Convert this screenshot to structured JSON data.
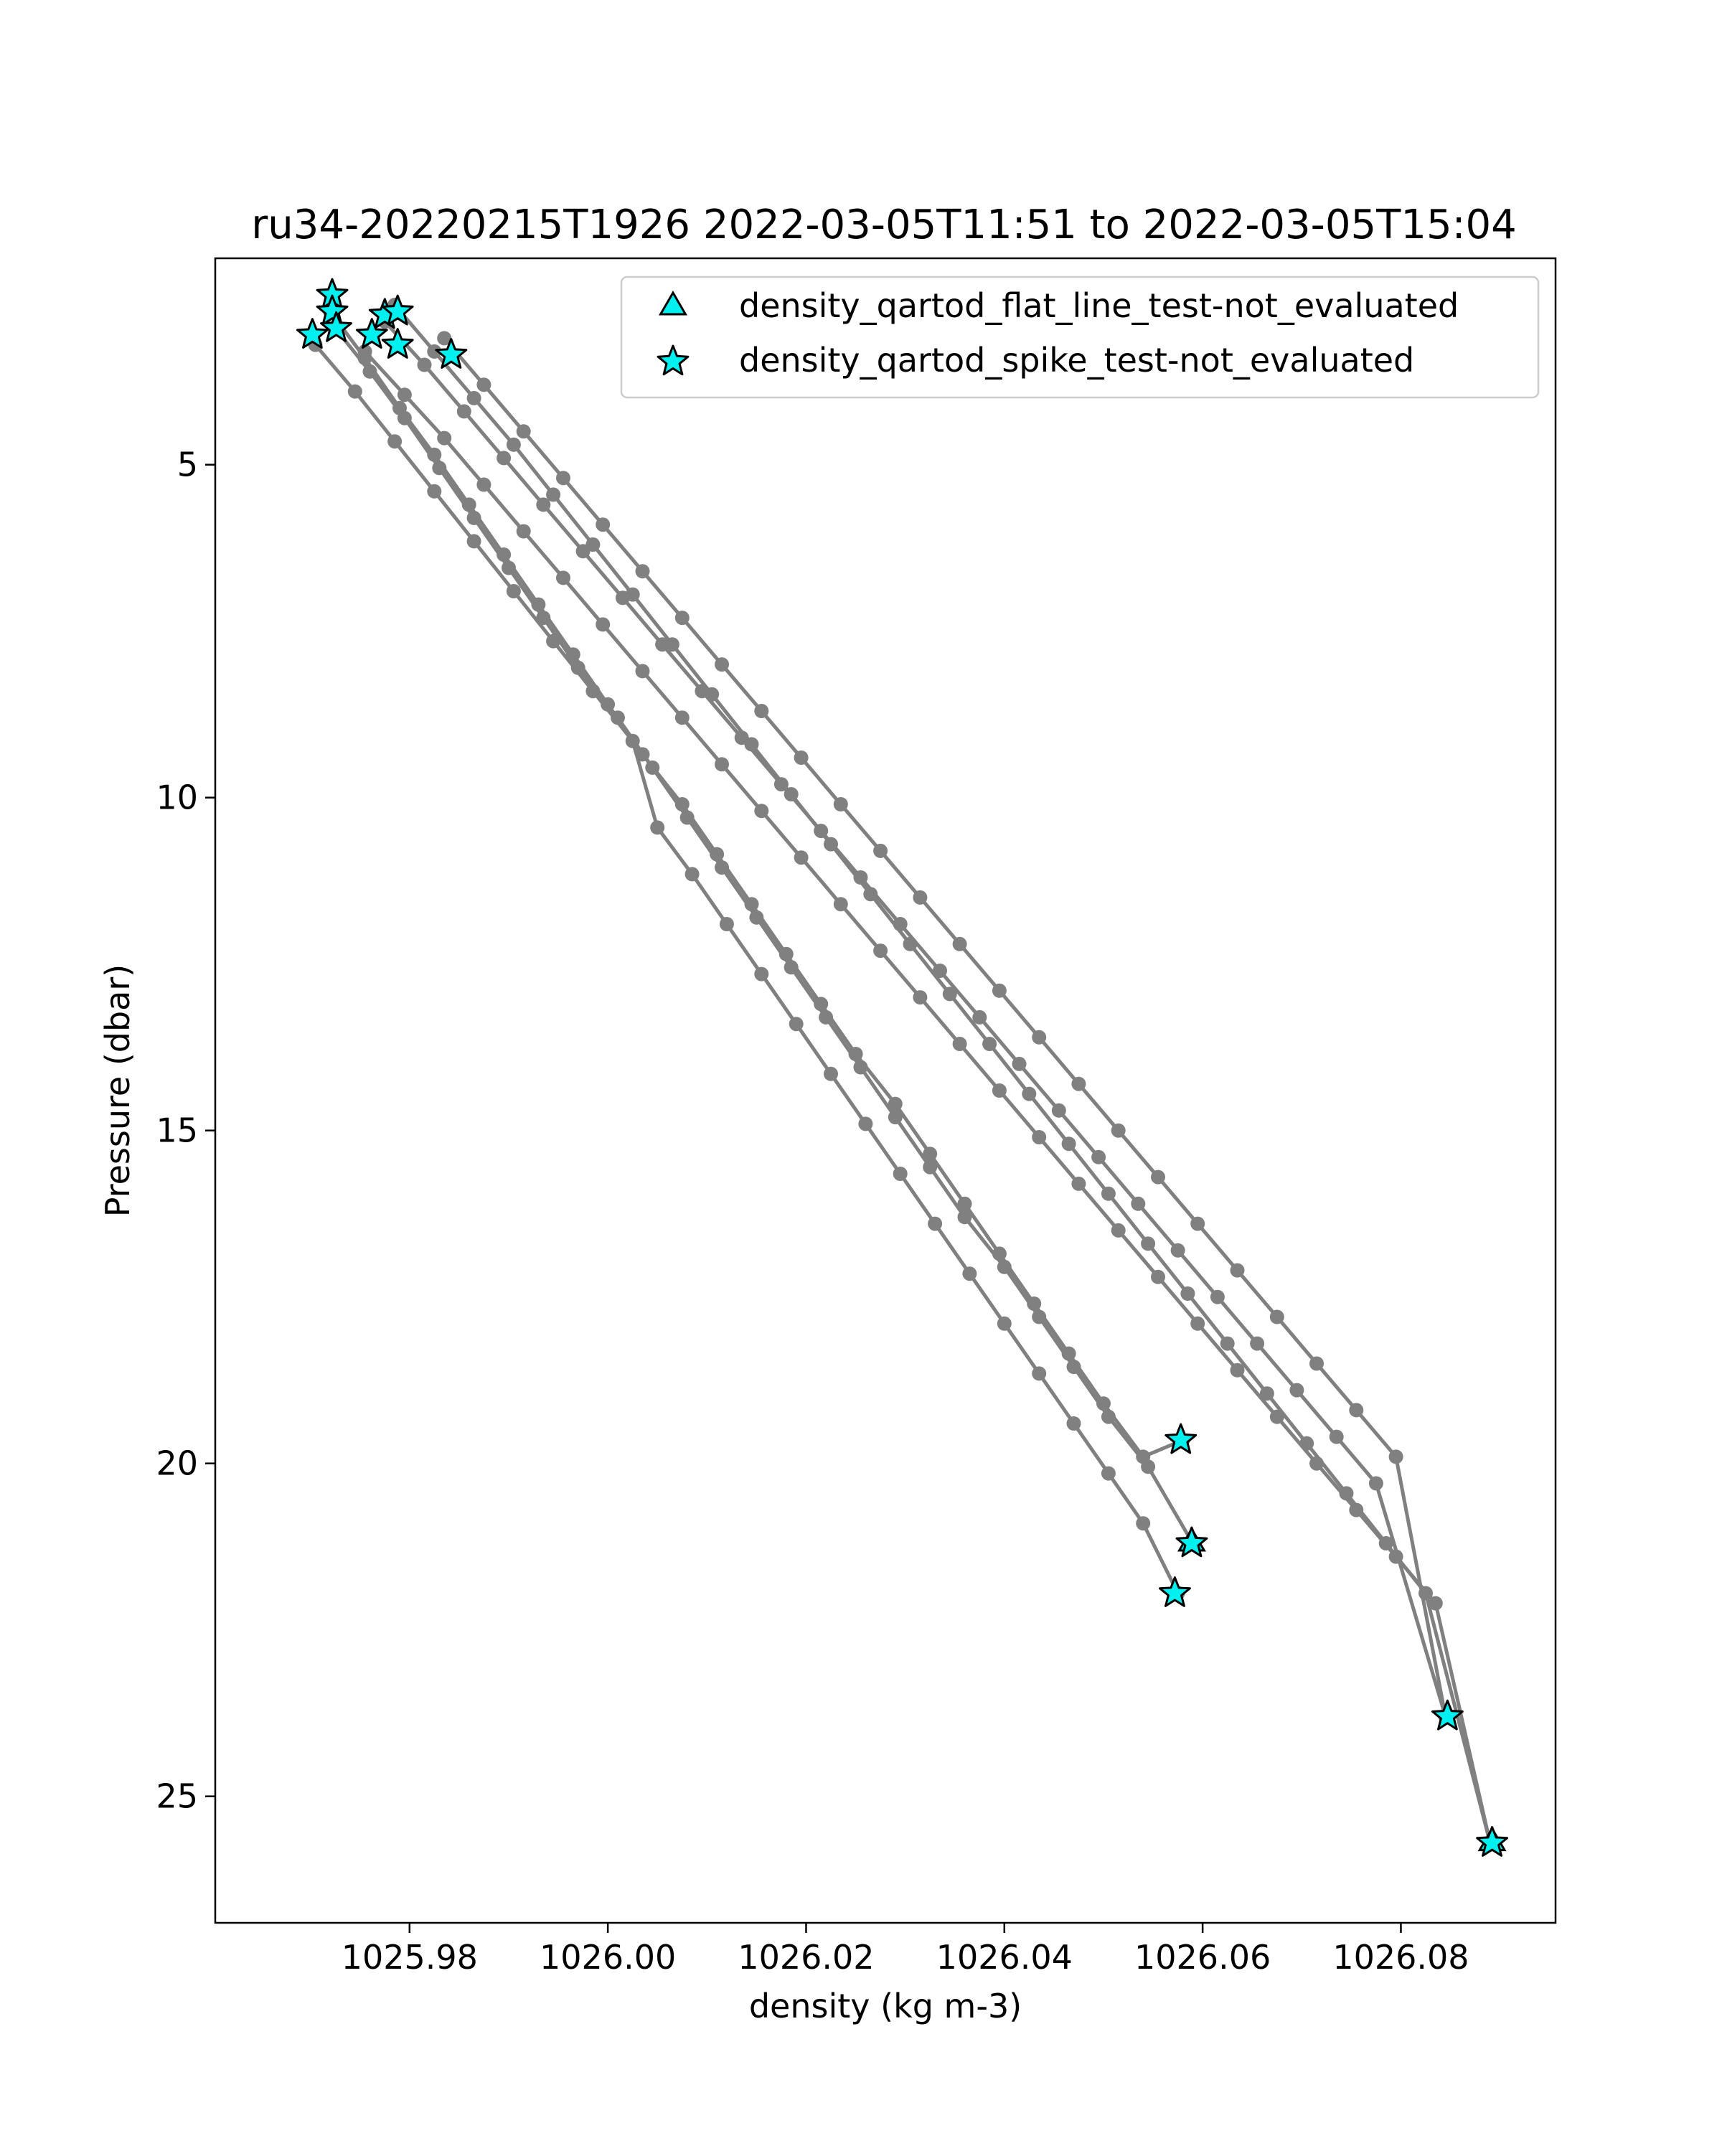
{
  "chart_data": {
    "type": "scatter",
    "title": "ru34-20220215T1926 2022-03-05T11:51 to 2022-03-05T15:04",
    "xlabel": "density (kg m-3)",
    "ylabel": "Pressure (dbar)",
    "xlim": [
      1025.9604,
      1026.0956
    ],
    "ylim": [
      26.9,
      1.9
    ],
    "y_inverted": true,
    "grid": false,
    "legend_position": "upper right",
    "xticks": [
      {
        "value": 1025.98,
        "label": "1025.98"
      },
      {
        "value": 1026.0,
        "label": "1026.00"
      },
      {
        "value": 1026.02,
        "label": "1026.02"
      },
      {
        "value": 1026.04,
        "label": "1026.04"
      },
      {
        "value": 1026.06,
        "label": "1026.06"
      },
      {
        "value": 1026.08,
        "label": "1026.08"
      }
    ],
    "yticks": [
      {
        "value": 5,
        "label": "5"
      },
      {
        "value": 10,
        "label": "10"
      },
      {
        "value": 15,
        "label": "15"
      },
      {
        "value": 20,
        "label": "20"
      },
      {
        "value": 25,
        "label": "25"
      }
    ],
    "profile_color": "#808080",
    "marker_color": "#00f0f0",
    "marker_edge_color": "#000000",
    "legend": [
      {
        "label": "density_qartod_flat_line_test-not_evaluated",
        "marker": "triangle"
      },
      {
        "label": "density_qartod_spike_test-not_evaluated",
        "marker": "star"
      }
    ],
    "profiles": [
      {
        "x": [
          1025.972,
          1025.9755,
          1025.979,
          1025.9825,
          1025.986,
          1025.9895,
          1025.993,
          1025.9965,
          1026.0,
          1026.0035,
          1026.0075,
          1026.011,
          1026.0145,
          1026.018,
          1026.0215,
          1026.025,
          1026.029,
          1026.0325,
          1026.036,
          1026.0395,
          1026.043,
          1026.0465,
          1026.05,
          1026.054,
          1026.058
        ],
        "y": [
          2.7,
          3.4,
          4.15,
          4.85,
          5.6,
          6.35,
          7.1,
          7.85,
          8.6,
          9.35,
          10.1,
          10.85,
          11.6,
          12.35,
          13.1,
          13.85,
          14.6,
          15.35,
          16.1,
          16.85,
          17.6,
          18.35,
          19.1,
          19.9,
          19.65
        ]
      },
      {
        "x": [
          1025.9705,
          1025.9745,
          1025.9785,
          1025.9825,
          1025.9865,
          1025.9905,
          1025.9945,
          1025.9985,
          1026.0025,
          1026.005,
          1026.0085,
          1026.012,
          1026.0155,
          1026.019,
          1026.0225,
          1026.026,
          1026.0295,
          1026.033,
          1026.0365,
          1026.04,
          1026.0435,
          1026.047,
          1026.0505,
          1026.054,
          1026.0575
        ],
        "y": [
          3.2,
          3.9,
          4.65,
          5.4,
          6.15,
          6.9,
          7.65,
          8.4,
          9.15,
          10.45,
          11.15,
          11.9,
          12.65,
          13.4,
          14.15,
          14.9,
          15.65,
          16.4,
          17.15,
          17.9,
          18.65,
          19.4,
          20.15,
          20.9,
          21.95
        ]
      },
      {
        "x": [
          1025.9725,
          1025.976,
          1025.9795,
          1025.983,
          1025.9865,
          1025.99,
          1025.9935,
          1025.997,
          1026.001,
          1026.0045,
          1026.008,
          1026.0115,
          1026.015,
          1026.0185,
          1026.022,
          1026.0255,
          1026.029,
          1026.0325,
          1026.036,
          1026.04,
          1026.0435,
          1026.047,
          1026.0505,
          1026.0545,
          1026.059
        ],
        "y": [
          2.95,
          3.6,
          4.3,
          5.05,
          5.8,
          6.55,
          7.3,
          8.05,
          8.8,
          9.55,
          10.3,
          11.05,
          11.8,
          12.55,
          13.3,
          14.05,
          14.8,
          15.55,
          16.3,
          17.05,
          17.8,
          18.55,
          19.3,
          20.05,
          21.2
        ]
      },
      {
        "x": [
          1025.9755,
          1025.9795,
          1025.9835,
          1025.9875,
          1025.9915,
          1025.9955,
          1025.9995,
          1026.0035,
          1026.0075,
          1026.0115,
          1026.0155,
          1026.0195,
          1026.0235,
          1026.0275,
          1026.0315,
          1026.0355,
          1026.0395,
          1026.0435,
          1026.0475,
          1026.0515,
          1026.0555,
          1026.0595,
          1026.0635,
          1026.0675,
          1026.0715,
          1026.0755,
          1026.0795,
          1026.0835,
          1026.089
        ],
        "y": [
          3.3,
          3.95,
          4.6,
          5.3,
          6.0,
          6.7,
          7.4,
          8.1,
          8.8,
          9.5,
          10.2,
          10.9,
          11.6,
          12.3,
          13.0,
          13.7,
          14.4,
          15.1,
          15.8,
          16.5,
          17.2,
          17.9,
          18.6,
          19.3,
          20.0,
          20.7,
          21.4,
          22.1,
          25.7
        ]
      },
      {
        "x": [
          1025.9775,
          1025.9815,
          1025.9855,
          1025.9895,
          1025.9935,
          1025.9975,
          1026.0015,
          1026.0055,
          1026.0095,
          1026.0135,
          1026.0175,
          1026.0215,
          1026.0255,
          1026.0295,
          1026.0335,
          1026.0375,
          1026.0415,
          1026.0455,
          1026.0495,
          1026.0535,
          1026.0575,
          1026.0615,
          1026.0655,
          1026.0695,
          1026.0735,
          1026.0775,
          1026.0845
        ],
        "y": [
          2.85,
          3.5,
          4.2,
          4.9,
          5.6,
          6.3,
          7.0,
          7.7,
          8.4,
          9.1,
          9.8,
          10.5,
          11.2,
          11.9,
          12.6,
          13.3,
          14.0,
          14.7,
          15.4,
          16.1,
          16.8,
          17.5,
          18.2,
          18.9,
          19.6,
          20.3,
          23.8
        ]
      },
      {
        "x": [
          1025.9785,
          1025.9825,
          1025.9865,
          1025.9905,
          1025.9945,
          1025.9985,
          1026.0025,
          1026.0065,
          1026.0105,
          1026.0145,
          1026.0185,
          1026.0225,
          1026.0265,
          1026.0305,
          1026.0345,
          1026.0385,
          1026.0425,
          1026.0465,
          1026.0505,
          1026.0545,
          1026.0585,
          1026.0625,
          1026.0665,
          1026.0705,
          1026.0745,
          1026.0785,
          1026.0825,
          1026.089
        ],
        "y": [
          2.6,
          3.3,
          4.0,
          4.7,
          5.45,
          6.2,
          6.95,
          7.7,
          8.45,
          9.2,
          9.95,
          10.7,
          11.45,
          12.2,
          12.95,
          13.7,
          14.45,
          15.2,
          15.95,
          16.7,
          17.45,
          18.2,
          18.95,
          19.7,
          20.45,
          21.2,
          21.95,
          25.7
        ]
      },
      {
        "x": [
          1025.9835,
          1025.9875,
          1025.9915,
          1025.9955,
          1025.9995,
          1026.0035,
          1026.0075,
          1026.0115,
          1026.0155,
          1026.0195,
          1026.0235,
          1026.0275,
          1026.0315,
          1026.0355,
          1026.0395,
          1026.0435,
          1026.0475,
          1026.0515,
          1026.0555,
          1026.0595,
          1026.0635,
          1026.0675,
          1026.0715,
          1026.0755,
          1026.0795,
          1026.0845
        ],
        "y": [
          3.1,
          3.8,
          4.5,
          5.2,
          5.9,
          6.6,
          7.3,
          8.0,
          8.7,
          9.4,
          10.1,
          10.8,
          11.5,
          12.2,
          12.9,
          13.6,
          14.3,
          15.0,
          15.7,
          16.4,
          17.1,
          17.8,
          18.5,
          19.2,
          19.9,
          23.8
        ]
      }
    ],
    "spike_markers": [
      {
        "x": 1025.9722,
        "y": 2.45
      },
      {
        "x": 1025.9722,
        "y": 2.7
      },
      {
        "x": 1025.9702,
        "y": 3.05
      },
      {
        "x": 1025.9726,
        "y": 2.95
      },
      {
        "x": 1025.9762,
        "y": 3.05
      },
      {
        "x": 1025.9775,
        "y": 2.75
      },
      {
        "x": 1025.9788,
        "y": 3.2
      },
      {
        "x": 1025.9788,
        "y": 2.7
      },
      {
        "x": 1025.9842,
        "y": 3.35
      },
      {
        "x": 1026.0578,
        "y": 19.65
      },
      {
        "x": 1026.0589,
        "y": 21.2
      },
      {
        "x": 1026.0572,
        "y": 21.95
      },
      {
        "x": 1026.0847,
        "y": 23.8
      },
      {
        "x": 1026.0892,
        "y": 25.7
      }
    ],
    "flat_line_markers": [
      {
        "x": 1026.0589,
        "y": 21.2
      },
      {
        "x": 1026.0892,
        "y": 25.7
      }
    ]
  }
}
